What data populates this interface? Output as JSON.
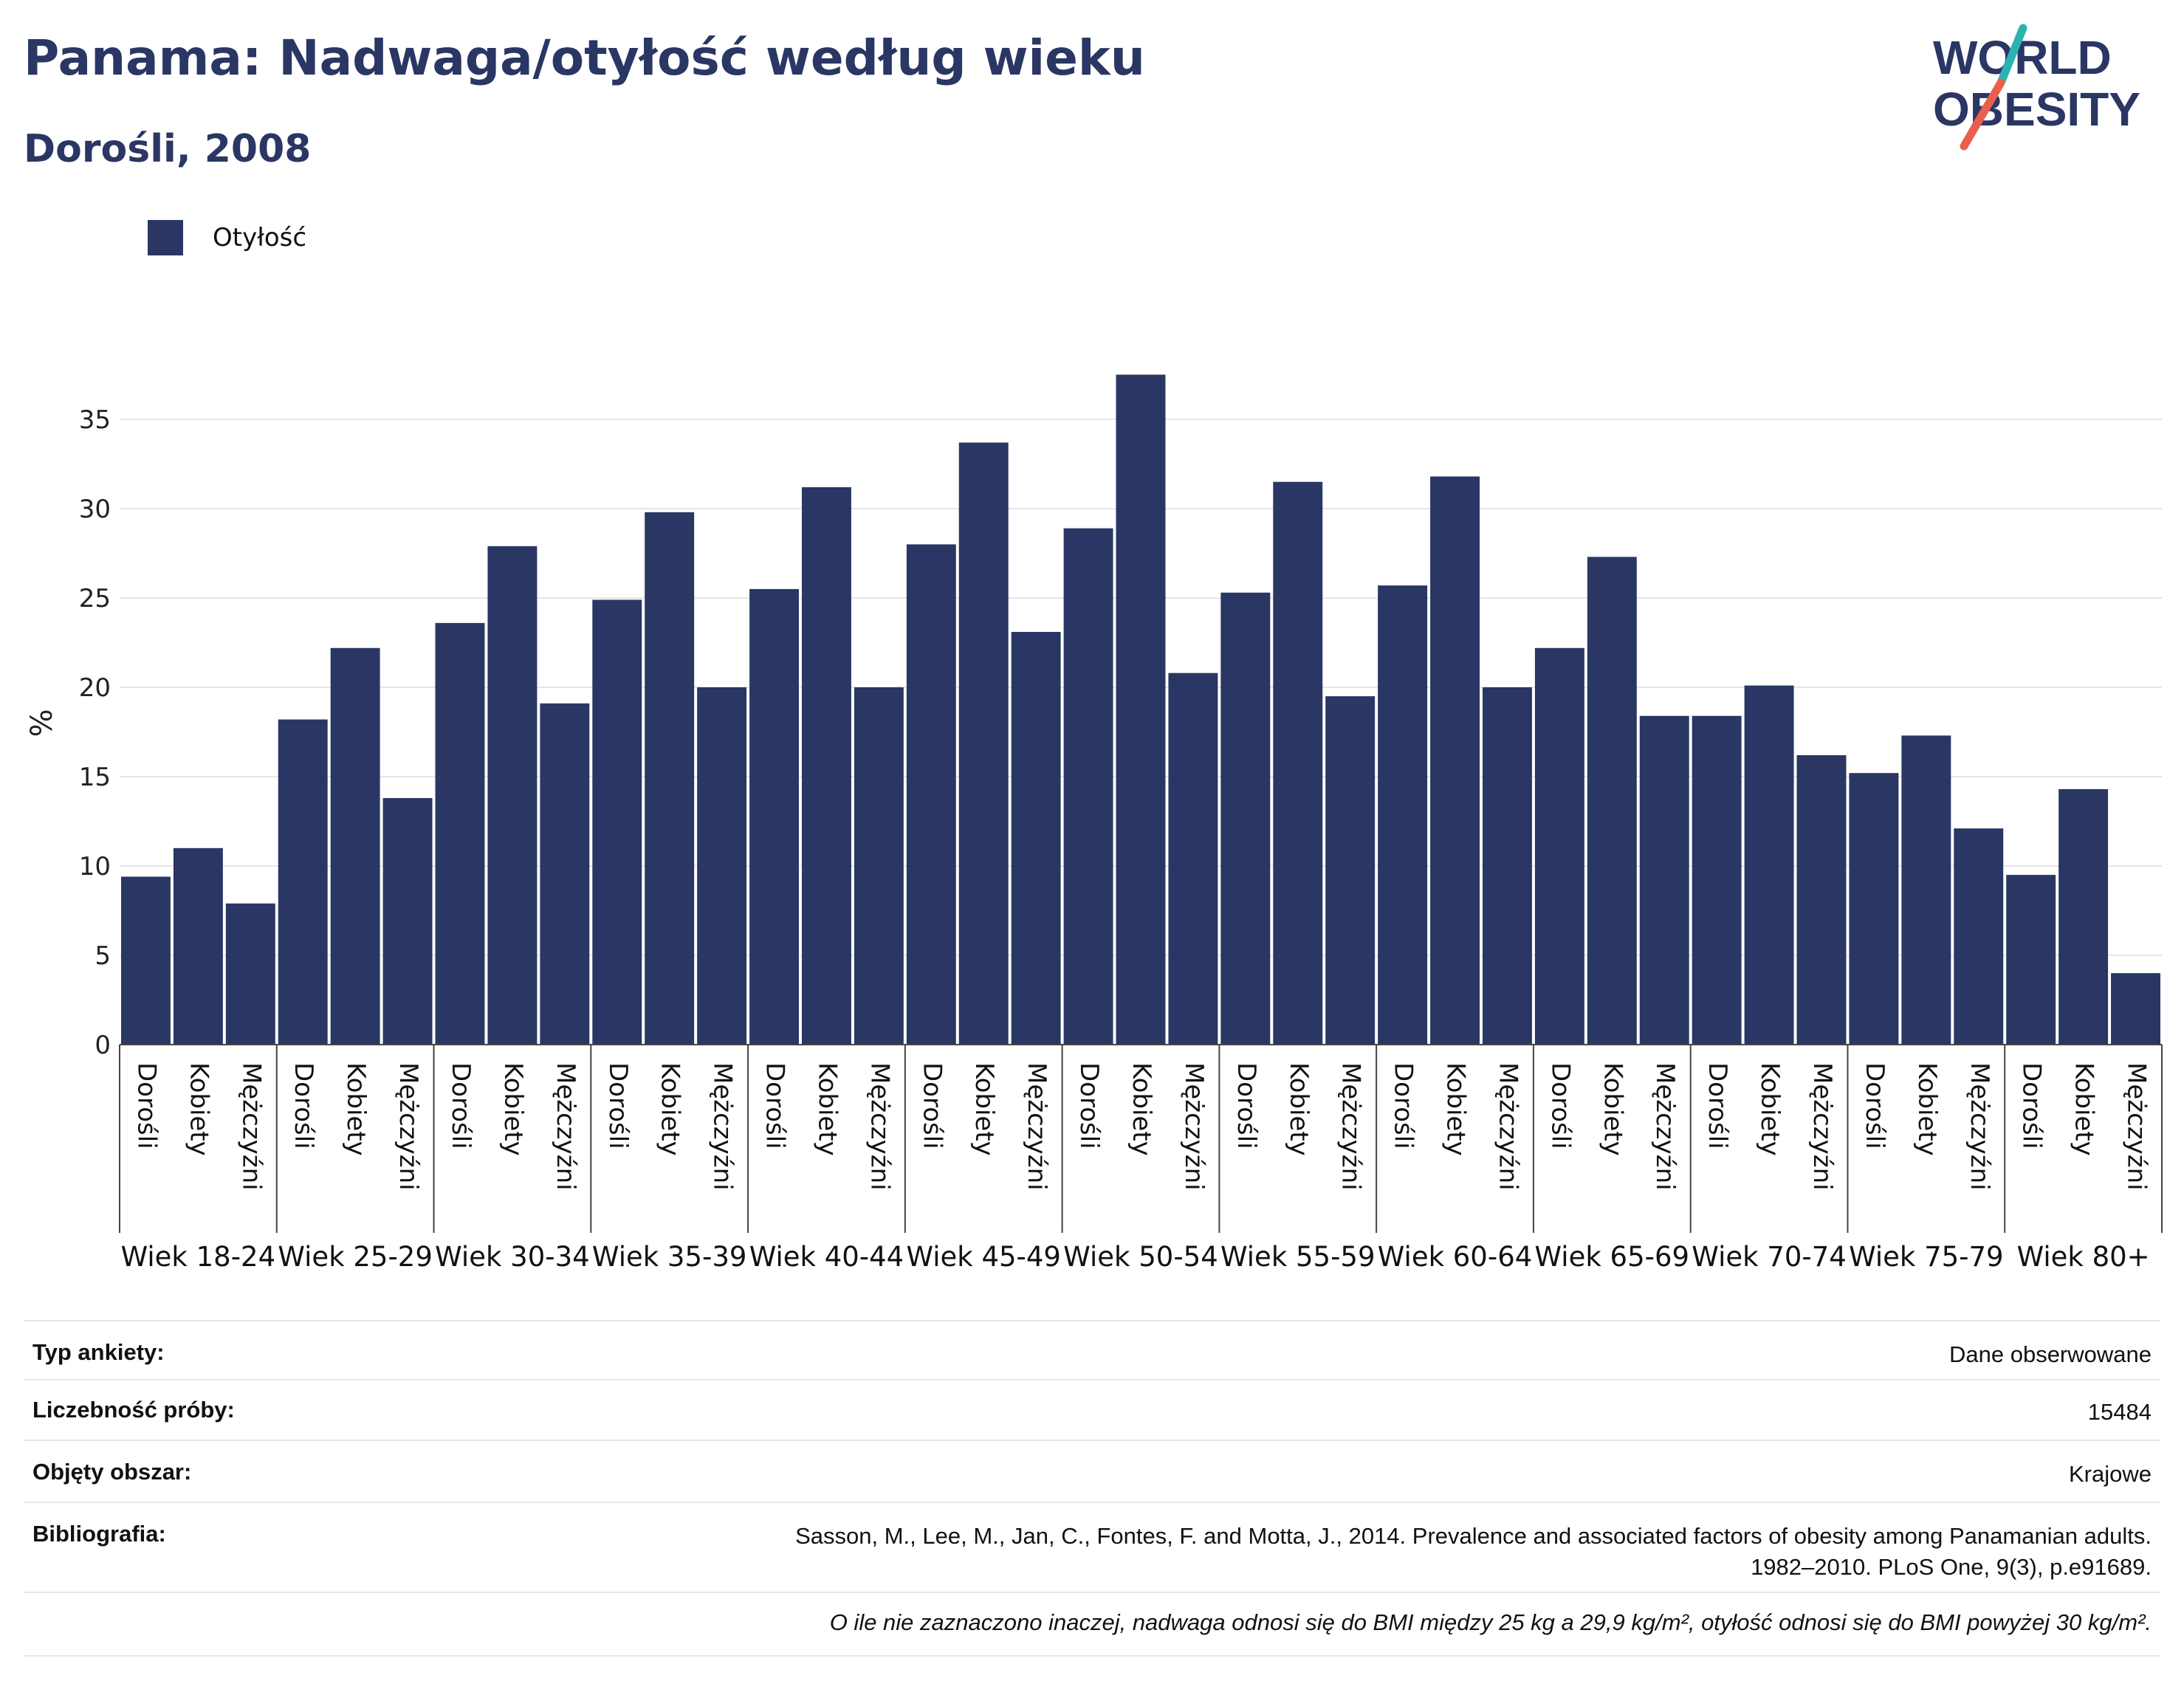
{
  "title": "Panama: Nadwaga/otyłość według wieku",
  "subtitle": "Dorośli, 2008",
  "logo": {
    "line1": "WORLD",
    "line2": "OBESITY",
    "accent_teal": "#2bb3b1",
    "accent_red": "#e8604c",
    "color": "#2a3663"
  },
  "legend": {
    "label": "Otyłość",
    "color": "#2a3663"
  },
  "chart_data": {
    "type": "bar",
    "ylabel": "%",
    "xlabel": "",
    "ylim": [
      0,
      37.5
    ],
    "yticks": [
      0,
      5,
      10,
      15,
      20,
      25,
      30,
      35
    ],
    "grid": true,
    "legend_position": "top-left",
    "bar_color": "#2a3663",
    "groups": [
      {
        "label": "Wiek 18-24",
        "values": [
          9.4,
          11.0,
          7.9
        ]
      },
      {
        "label": "Wiek 25-29",
        "values": [
          18.2,
          22.2,
          13.8
        ]
      },
      {
        "label": "Wiek 30-34",
        "values": [
          23.6,
          27.9,
          19.1
        ]
      },
      {
        "label": "Wiek 35-39",
        "values": [
          24.9,
          29.8,
          20.0
        ]
      },
      {
        "label": "Wiek 40-44",
        "values": [
          25.5,
          31.2,
          20.0
        ]
      },
      {
        "label": "Wiek 45-49",
        "values": [
          28.0,
          33.7,
          23.1
        ]
      },
      {
        "label": "Wiek 50-54",
        "values": [
          28.9,
          37.5,
          20.8
        ]
      },
      {
        "label": "Wiek 55-59",
        "values": [
          25.3,
          31.5,
          19.5
        ]
      },
      {
        "label": "Wiek 60-64",
        "values": [
          25.7,
          31.8,
          20.0
        ]
      },
      {
        "label": "Wiek 65-69",
        "values": [
          22.2,
          27.3,
          18.4
        ]
      },
      {
        "label": "Wiek 70-74",
        "values": [
          18.4,
          20.1,
          16.2
        ]
      },
      {
        "label": "Wiek 75-79",
        "values": [
          15.2,
          17.3,
          12.1
        ]
      },
      {
        "label": "Wiek 80+",
        "values": [
          9.5,
          14.3,
          4.0
        ]
      }
    ],
    "subcategories": [
      "Dorośli",
      "Kobiety",
      "Mężczyźni"
    ],
    "series": [
      {
        "name": "Otyłość"
      }
    ]
  },
  "info": {
    "survey_type_label": "Typ ankiety:",
    "survey_type_value": "Dane obserwowane",
    "sample_size_label": "Liczebność próby:",
    "sample_size_value": "15484",
    "area_label": "Objęty obszar:",
    "area_value": "Krajowe",
    "bibliography_label": "Bibliografia:",
    "bibliography_line1": "Sasson, M., Lee, M., Jan, C., Fontes, F. and Motta, J., 2014. Prevalence and associated factors of obesity among Panamanian adults.",
    "bibliography_line2": "1982–2010. PLoS One, 9(3), p.e91689.",
    "note": "O ile nie zaznaczono inaczej, nadwaga odnosi się do BMI między 25 kg a 29,9 kg/m², otyłość odnosi się do BMI powyżej 30 kg/m²."
  }
}
